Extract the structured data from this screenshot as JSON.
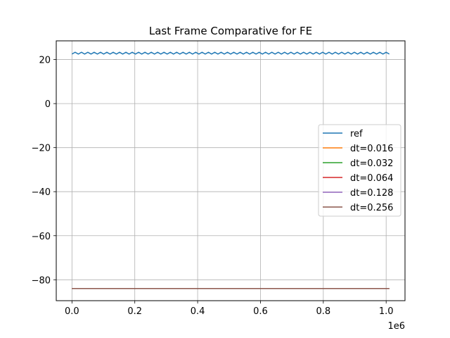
{
  "chart_data": {
    "type": "line",
    "title": "Last Frame Comparative for FE",
    "xlabel": "",
    "ylabel": "",
    "x_offset_label": "1e6",
    "xlim": [
      -50000,
      1060000
    ],
    "ylim": [
      -89.5,
      28.5
    ],
    "x_ticks": [
      0,
      200000,
      400000,
      600000,
      800000,
      1000000
    ],
    "x_tick_labels": [
      "0.0",
      "0.2",
      "0.4",
      "0.6",
      "0.8",
      "1.0"
    ],
    "y_ticks": [
      20,
      0,
      -20,
      -40,
      -60,
      -80
    ],
    "y_tick_labels": [
      "20",
      "0",
      "−20",
      "−40",
      "−60",
      "−80"
    ],
    "grid": true,
    "legend_position": "center-right",
    "series": [
      {
        "name": "ref",
        "color": "#1f77b4",
        "pattern": "sawtooth",
        "x_start": 0,
        "x_end": 1010000,
        "y_low": 22.5,
        "y_high": 23.3,
        "cycles": 100
      },
      {
        "name": "dt=0.016",
        "color": "#ff7f0e",
        "x_start": 0,
        "x_end": 1010000,
        "y": -84.0
      },
      {
        "name": "dt=0.032",
        "color": "#2ca02c",
        "x_start": 0,
        "x_end": 1010000,
        "y": -84.0
      },
      {
        "name": "dt=0.064",
        "color": "#d62728",
        "x_start": 0,
        "x_end": 1010000,
        "y": -84.0
      },
      {
        "name": "dt=0.128",
        "color": "#9467bd",
        "x_start": 0,
        "x_end": 1010000,
        "y": -84.0
      },
      {
        "name": "dt=0.256",
        "color": "#8c564b",
        "x_start": 0,
        "x_end": 1010000,
        "y": -84.0
      }
    ]
  }
}
